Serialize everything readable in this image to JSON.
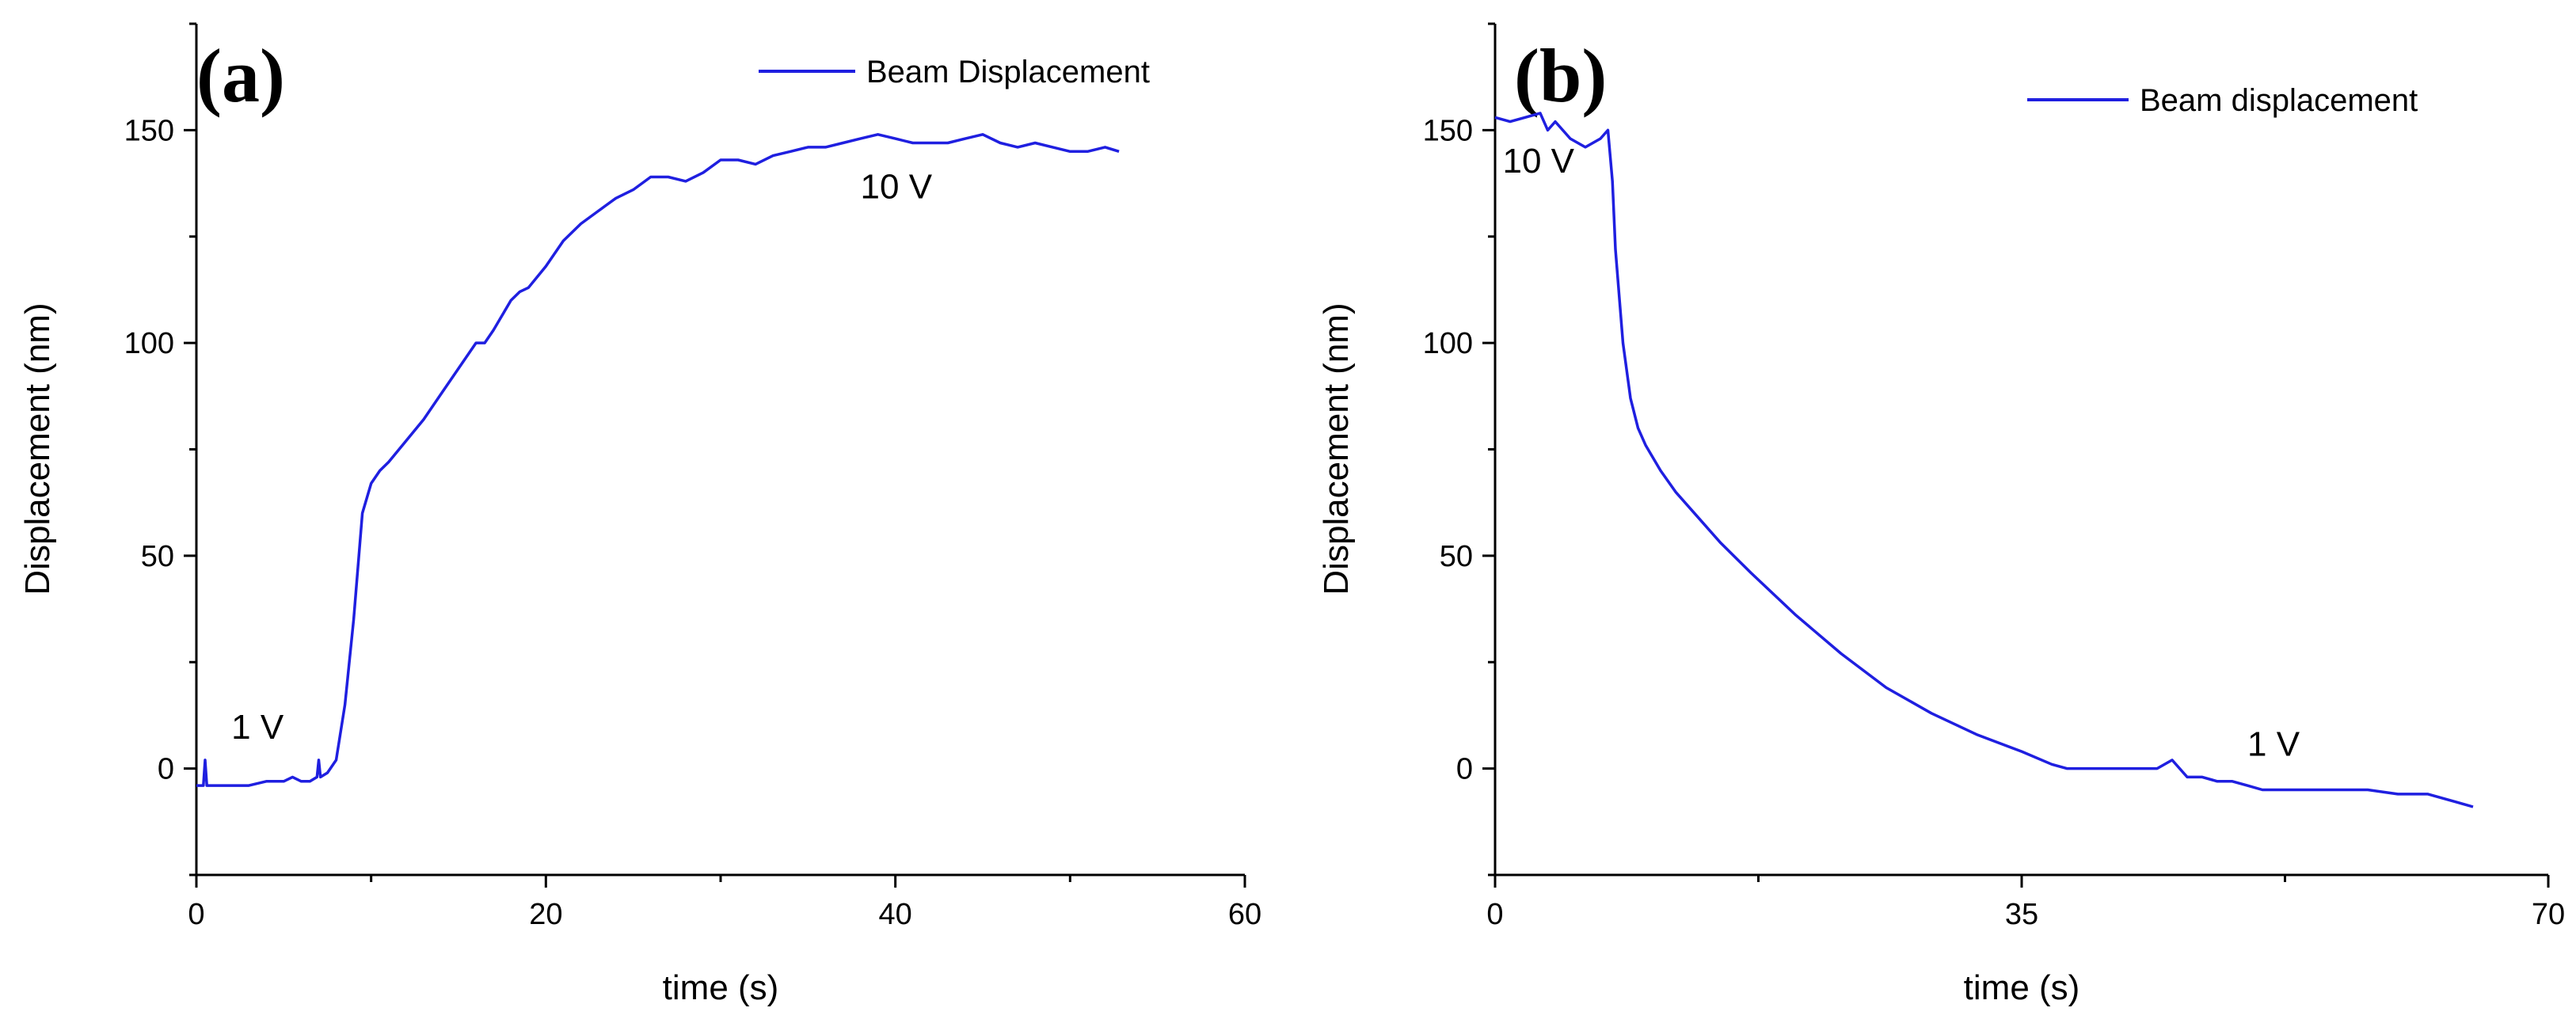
{
  "chart_data": [
    {
      "type": "line",
      "panel_label": "(a)",
      "xlabel": "time (s)",
      "ylabel": "Displacement (nm)",
      "xlim": [
        0,
        60
      ],
      "ylim": [
        -25,
        175
      ],
      "xticks": [
        0,
        20,
        40,
        60
      ],
      "xtick_labels": [
        "0",
        "20",
        "40",
        "60"
      ],
      "x_minor_ticks": [
        10,
        30,
        50
      ],
      "yticks": [
        0,
        50,
        100,
        150
      ],
      "ytick_labels": [
        "0",
        "50",
        "100",
        "150"
      ],
      "y_minor_ticks": [
        -25,
        25,
        75,
        125,
        175
      ],
      "grid": false,
      "legend_position": "top-right",
      "series": [
        {
          "name": "Beam Displacement",
          "color": "#1f1fe0",
          "x": [
            0,
            0.4,
            0.5,
            0.6,
            1,
            2,
            3,
            4,
            5,
            5.5,
            6,
            6.5,
            6.9,
            7,
            7.1,
            7.5,
            8,
            8.5,
            9,
            9.5,
            10,
            10.5,
            11,
            12,
            13,
            14,
            15,
            16,
            16.5,
            17,
            18,
            18.5,
            19,
            20,
            21,
            22,
            23,
            24,
            25,
            26,
            27,
            28,
            29,
            30,
            31,
            32,
            33,
            34,
            35,
            36,
            37,
            38,
            39,
            40,
            41,
            42,
            43,
            44,
            45,
            46,
            47,
            48,
            49,
            50,
            51,
            52,
            52.8
          ],
          "y": [
            -4,
            -4,
            2,
            -4,
            -4,
            -4,
            -4,
            -3,
            -3,
            -2,
            -3,
            -3,
            -2,
            2,
            -2,
            -1,
            2,
            15,
            35,
            60,
            67,
            70,
            72,
            77,
            82,
            88,
            94,
            100,
            100,
            103,
            110,
            112,
            113,
            118,
            124,
            128,
            131,
            134,
            136,
            139,
            139,
            138,
            140,
            143,
            143,
            142,
            144,
            145,
            146,
            146,
            147,
            148,
            149,
            148,
            147,
            147,
            147,
            148,
            149,
            147,
            146,
            147,
            146,
            145,
            145,
            146,
            145
          ]
        }
      ],
      "annotations": [
        {
          "text": "1 V",
          "x": 2,
          "y": 7
        },
        {
          "text": "10 V",
          "x": 38,
          "y": 134
        }
      ]
    },
    {
      "type": "line",
      "panel_label": "(b)",
      "xlabel": "time (s)",
      "ylabel": "Displacement (nm)",
      "xlim": [
        0,
        70
      ],
      "ylim": [
        -25,
        175
      ],
      "xticks": [
        0,
        35,
        70
      ],
      "xtick_labels": [
        "0",
        "35",
        "70"
      ],
      "x_minor_ticks": [
        17.5,
        52.5
      ],
      "yticks": [
        0,
        50,
        100,
        150
      ],
      "ytick_labels": [
        "0",
        "50",
        "100",
        "150"
      ],
      "y_minor_ticks": [
        -25,
        25,
        75,
        125,
        175
      ],
      "grid": false,
      "legend_position": "top-right",
      "series": [
        {
          "name": "Beam displacement",
          "color": "#1f1fe0",
          "x": [
            0,
            1,
            2,
            3,
            3.5,
            4,
            5,
            6,
            7,
            7.5,
            7.8,
            8,
            8.5,
            9,
            9.5,
            10,
            11,
            12,
            13,
            14,
            15,
            17,
            20,
            23,
            26,
            29,
            32,
            35,
            37,
            38,
            39,
            40,
            42,
            44,
            45,
            45.5,
            46,
            47,
            48,
            49,
            50,
            51,
            52,
            54,
            56,
            58,
            60,
            62,
            64,
            65
          ],
          "y": [
            153,
            152,
            153,
            154,
            150,
            152,
            148,
            146,
            148,
            150,
            138,
            122,
            100,
            87,
            80,
            76,
            70,
            65,
            61,
            57,
            53,
            46,
            36,
            27,
            19,
            13,
            8,
            4,
            1,
            0,
            0,
            0,
            0,
            0,
            2,
            0,
            -2,
            -2,
            -3,
            -3,
            -4,
            -5,
            -5,
            -5,
            -5,
            -5,
            -6,
            -6,
            -8,
            -9
          ]
        }
      ],
      "annotations": [
        {
          "text": "10 V",
          "x": 0.5,
          "y": 140
        },
        {
          "text": "1 V",
          "x": 50,
          "y": 3
        }
      ]
    }
  ],
  "colors": {
    "series": "#1f1fe0",
    "axis": "#000000"
  }
}
